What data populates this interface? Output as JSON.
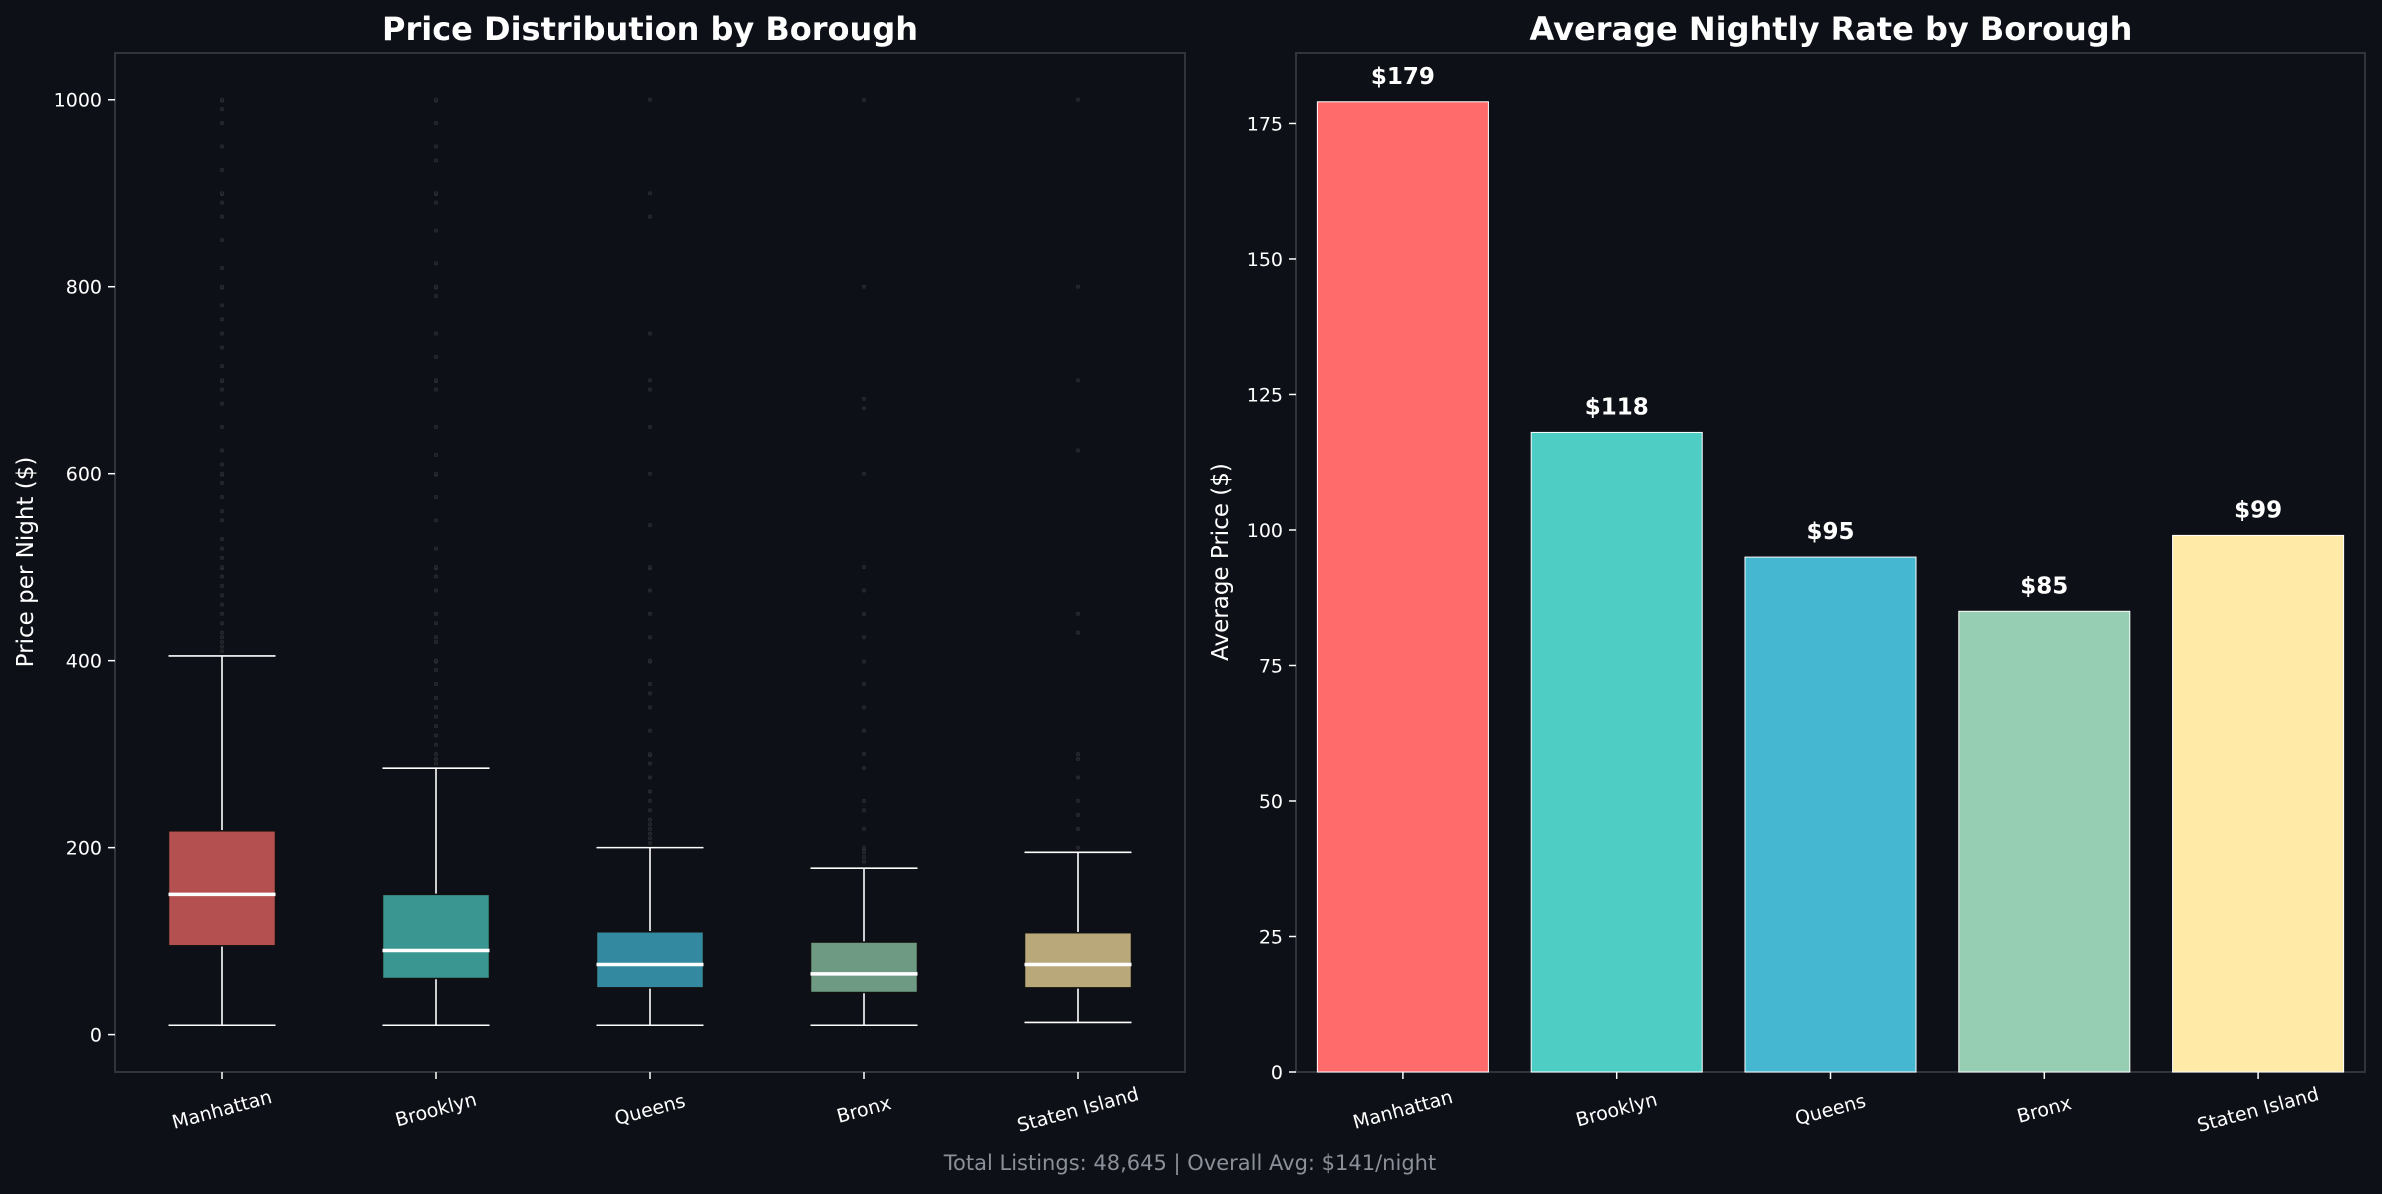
{
  "figure": {
    "background": "#0d1017",
    "footer": "Total Listings: 48,645 | Overall Avg: $141/night"
  },
  "chart_data": [
    {
      "type": "box",
      "title": "Price Distribution by Borough",
      "xlabel": "",
      "ylabel": "Price per Night ($)",
      "ylim": [
        -40,
        1050
      ],
      "yticks": [
        0,
        200,
        400,
        600,
        800,
        1000
      ],
      "categories": [
        "Manhattan",
        "Brooklyn",
        "Queens",
        "Bronx",
        "Staten Island"
      ],
      "colors": [
        "#b55050",
        "#3a9690",
        "#338aa0",
        "#6e9a84",
        "#b8a87a"
      ],
      "median_color": "#ffffff",
      "grid": false,
      "boxes": [
        {
          "whislo": 10,
          "q1": 95,
          "med": 150,
          "q3": 218,
          "whishi": 405,
          "outliers": [
            410,
            415,
            420,
            425,
            430,
            440,
            450,
            460,
            470,
            480,
            490,
            499,
            500,
            510,
            520,
            530,
            550,
            560,
            575,
            590,
            599,
            600,
            610,
            625,
            650,
            675,
            690,
            699,
            700,
            715,
            735,
            750,
            765,
            780,
            799,
            800,
            820,
            850,
            875,
            890,
            899,
            900,
            925,
            950,
            975,
            990,
            999,
            1000
          ]
        },
        {
          "whislo": 10,
          "q1": 60,
          "med": 90,
          "q3": 150,
          "whishi": 285,
          "outliers": [
            290,
            295,
            300,
            310,
            320,
            330,
            340,
            350,
            360,
            375,
            390,
            399,
            400,
            420,
            425,
            440,
            450,
            475,
            490,
            499,
            500,
            520,
            550,
            575,
            599,
            600,
            620,
            650,
            690,
            699,
            700,
            725,
            750,
            790,
            799,
            800,
            825,
            860,
            890,
            899,
            900,
            935,
            950,
            975,
            999,
            1000
          ]
        },
        {
          "whislo": 10,
          "q1": 50,
          "med": 75,
          "q3": 110,
          "whishi": 200,
          "outliers": [
            205,
            210,
            215,
            220,
            225,
            230,
            240,
            250,
            260,
            275,
            290,
            299,
            300,
            325,
            350,
            365,
            375,
            399,
            400,
            425,
            450,
            475,
            499,
            500,
            545,
            600,
            650,
            690,
            700,
            750,
            875,
            900,
            1000
          ]
        },
        {
          "whislo": 10,
          "q1": 45,
          "med": 65,
          "q3": 99,
          "whishi": 178,
          "outliers": [
            185,
            190,
            195,
            199,
            200,
            220,
            240,
            250,
            285,
            300,
            325,
            350,
            375,
            399,
            425,
            450,
            475,
            500,
            600,
            670,
            680,
            800,
            1000
          ]
        },
        {
          "whislo": 13,
          "q1": 50,
          "med": 75,
          "q3": 109,
          "whishi": 195,
          "outliers": [
            200,
            220,
            235,
            250,
            275,
            295,
            300,
            430,
            450,
            625,
            700,
            800,
            1000
          ]
        }
      ]
    },
    {
      "type": "bar",
      "title": "Average Nightly Rate by Borough",
      "xlabel": "",
      "ylabel": "Average Price ($)",
      "ylim": [
        0,
        188
      ],
      "yticks": [
        0,
        25,
        50,
        75,
        100,
        125,
        150,
        175
      ],
      "categories": [
        "Manhattan",
        "Brooklyn",
        "Queens",
        "Bronx",
        "Staten Island"
      ],
      "values": [
        179,
        118,
        95,
        85,
        99
      ],
      "data_labels": [
        "$179",
        "$118",
        "$95",
        "$85",
        "$99"
      ],
      "colors": [
        "#ff6b6b",
        "#4ecdc4",
        "#45b7d1",
        "#96ceb4",
        "#ffeaa7"
      ],
      "grid": false
    }
  ]
}
